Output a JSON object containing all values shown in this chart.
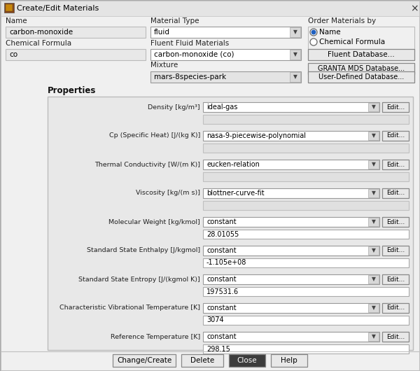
{
  "title": "Create/Edit Materials",
  "bg_outer": "#f0f0f0",
  "bg_dialog": "#f0f0f0",
  "titlebar_bg": "#dcdcdc",
  "name_label": "Name",
  "name_value": "carbon-monoxide",
  "chem_formula_label": "Chemical Formula",
  "chem_formula_value": "co",
  "material_type_label": "Material Type",
  "material_type_value": "fluid",
  "fluent_fluid_label": "Fluent Fluid Materials",
  "fluent_fluid_value": "carbon-monoxide (co)",
  "mixture_label": "Mixture",
  "mixture_value": "mars-8species-park",
  "order_by_label": "Order Materials by",
  "radio1": "Name",
  "radio2": "Chemical Formula",
  "btn_fluent": "Fluent Database...",
  "btn_granta": "GRANTA MDS Database...",
  "btn_user": "User-Defined Database...",
  "properties_label": "Properties",
  "properties": [
    {
      "label": "Density [kg/m³]",
      "method": "ideal-gas",
      "value": "",
      "has_value_box": true
    },
    {
      "label": "Cp (Specific Heat) [J/(kg K)]",
      "method": "nasa-9-piecewise-polynomial",
      "value": "",
      "has_value_box": true
    },
    {
      "label": "Thermal Conductivity [W/(m K)]",
      "method": "eucken-relation",
      "value": "",
      "has_value_box": true
    },
    {
      "label": "Viscosity [kg/(m s)]",
      "method": "blottner-curve-fit",
      "value": "",
      "has_value_box": true
    },
    {
      "label": "Molecular Weight [kg/kmol]",
      "method": "constant",
      "value": "28.01055",
      "has_value_box": true
    },
    {
      "label": "Standard State Enthalpy [J/kgmol]",
      "method": "constant",
      "value": "-1.105e+08",
      "has_value_box": true
    },
    {
      "label": "Standard State Entropy [J/(kgmol K)]",
      "method": "constant",
      "value": "197531.6",
      "has_value_box": true
    },
    {
      "label": "Characteristic Vibrational Temperature [K]",
      "method": "constant",
      "value": "3074",
      "has_value_box": true
    },
    {
      "label": "Reference Temperature [K]",
      "method": "constant",
      "value": "298.15",
      "has_value_box": true
    }
  ],
  "btn_change": "Change/Create",
  "btn_delete": "Delete",
  "btn_close": "Close",
  "btn_help": "Help"
}
